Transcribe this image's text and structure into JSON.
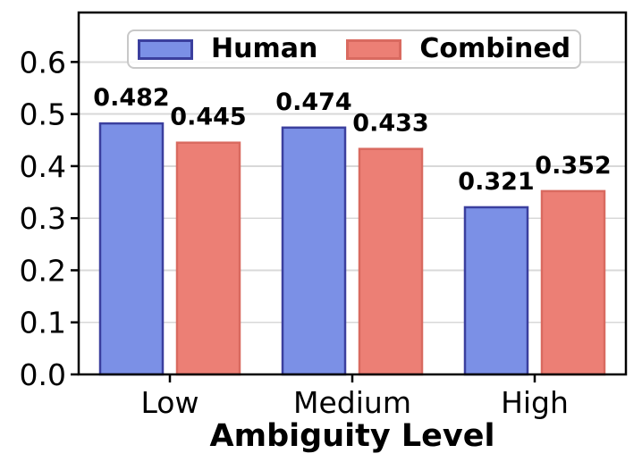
{
  "chart_data": {
    "type": "bar",
    "title": "",
    "xlabel": "Ambiguity Level",
    "ylabel": "",
    "categories": [
      "Low",
      "Medium",
      "High"
    ],
    "series": [
      {
        "name": "Human",
        "values": [
          0.482,
          0.474,
          0.321
        ],
        "fill": "#7B90E6",
        "edge": "#3B3F9E"
      },
      {
        "name": "Combined",
        "values": [
          0.445,
          0.433,
          0.352
        ],
        "fill": "#EC7F75",
        "edge": "#D96A60"
      }
    ],
    "ylim": [
      0,
      0.695
    ],
    "yticks": [
      0.0,
      0.1,
      0.2,
      0.3,
      0.4,
      0.5,
      0.6
    ],
    "grid": true,
    "legend_position": "upper center",
    "value_labels": [
      "0.482",
      "0.445",
      "0.474",
      "0.433",
      "0.321",
      "0.352"
    ],
    "colors": {
      "grid": "#D8D8D8",
      "spine": "#000000",
      "text": "#000000",
      "legend_border": "#C8C8C8",
      "background": "#FFFFFF"
    }
  }
}
